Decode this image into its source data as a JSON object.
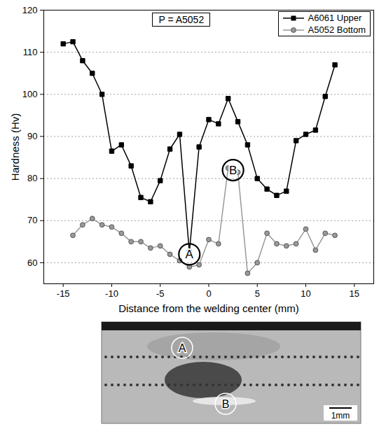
{
  "chart_data": {
    "type": "line",
    "title": "P = A5052",
    "x_label": "Distance from the welding center (mm)",
    "y_label": "Hardness (Hv)",
    "xlim": [
      -17,
      17
    ],
    "xticks": [
      -15,
      -10,
      -5,
      0,
      5,
      10,
      15
    ],
    "ylim": [
      55,
      120
    ],
    "yticks": [
      60,
      70,
      80,
      90,
      100,
      110,
      120
    ],
    "grid": true,
    "legend": "top-right",
    "series": [
      {
        "name": "A6061 Upper",
        "color": "#000000",
        "marker": "square",
        "line_style": "solid",
        "x": [
          -15,
          -14,
          -13,
          -12,
          -11,
          -10,
          -9,
          -8,
          -7,
          -6,
          -5,
          -4,
          -3,
          -2,
          -1,
          0,
          1,
          2,
          3,
          4,
          5,
          6,
          7,
          8,
          9,
          10,
          11,
          12,
          13
        ],
        "values": [
          112,
          112.5,
          108,
          105,
          100,
          86.5,
          88,
          83,
          75.5,
          74.5,
          79.5,
          87,
          90.5,
          62.5,
          87.5,
          94,
          93,
          99,
          93.5,
          88,
          80,
          77.5,
          76,
          77,
          89,
          90.5,
          91.5,
          99.5,
          107
        ]
      },
      {
        "name": "A5052 Bottom",
        "color": "#999999",
        "marker": "circle",
        "line_style": "solid",
        "x": [
          -14,
          -13,
          -12,
          -11,
          -10,
          -9,
          -8,
          -7,
          -6,
          -5,
          -4,
          -3,
          -2,
          -1,
          0,
          1,
          2,
          3,
          4,
          5,
          6,
          7,
          8,
          9,
          10,
          11,
          12,
          13
        ],
        "values": [
          66.5,
          69,
          70.5,
          69,
          68.5,
          67,
          65,
          65,
          63.5,
          64,
          62,
          60.5,
          59,
          59.5,
          65.5,
          64.5,
          82.5,
          81.5,
          57.5,
          60,
          67,
          64.5,
          64,
          64.5,
          68,
          63,
          67,
          66.5
        ]
      }
    ],
    "annotations": [
      {
        "text": "A",
        "x": -2,
        "y": 62
      },
      {
        "text": "B",
        "x": 2.5,
        "y": 82
      }
    ]
  },
  "micrograph": {
    "markers": [
      "A",
      "B"
    ],
    "scale_bar": "1mm"
  }
}
